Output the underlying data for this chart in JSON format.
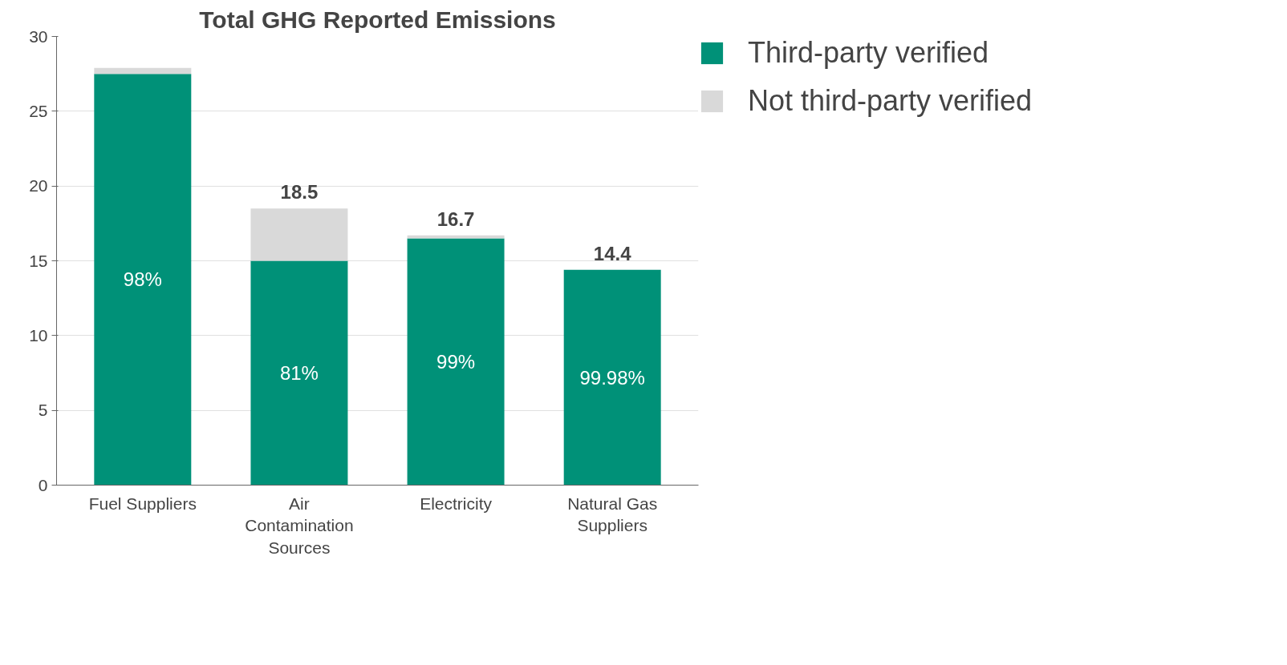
{
  "chart_data": {
    "type": "bar",
    "title": "Total GHG Reported Emissions",
    "categories": [
      "Fuel Suppliers",
      "Air Contamination Sources",
      "Electricity",
      "Natural Gas Suppliers"
    ],
    "stacked": true,
    "series": [
      {
        "name": "Third-party verified",
        "color": "#009178",
        "values": [
          27.5,
          15.0,
          16.5,
          14.4
        ]
      },
      {
        "name": "Not third-party verified",
        "color": "#d9d9d9",
        "values": [
          0.4,
          3.5,
          0.2,
          0.0
        ]
      }
    ],
    "totals": [
      null,
      "18.5",
      "16.7",
      "14.4"
    ],
    "annotations": [
      "98%",
      "81%",
      "99%",
      "99.98%"
    ],
    "ylim": [
      0,
      30
    ],
    "yticks": [
      0,
      5,
      10,
      15,
      20,
      25,
      30
    ],
    "grid": "y",
    "legend": "top right"
  }
}
